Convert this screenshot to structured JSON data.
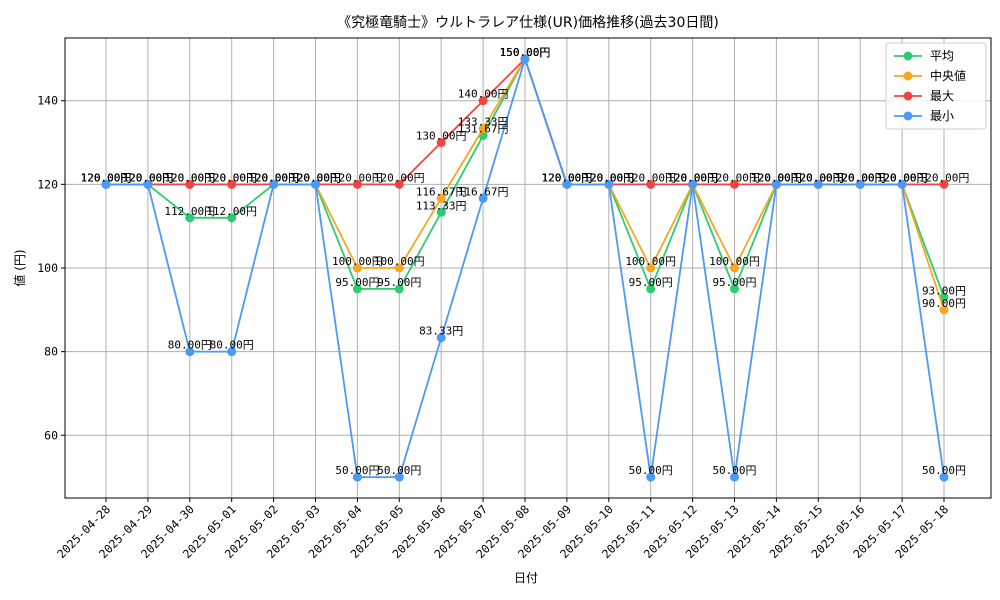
{
  "chart_data": {
    "type": "line",
    "title": "《究極竜騎士》ウルトラレア仕様(UR)価格推移(過去30日間)",
    "xlabel": "日付",
    "ylabel": "値 (円)",
    "ylim": [
      45,
      155
    ],
    "yticks": [
      60,
      80,
      100,
      120,
      140
    ],
    "grid": true,
    "legend_position": "top-right",
    "label_suffix": "円",
    "categories": [
      "2025-04-28",
      "2025-04-29",
      "2025-04-30",
      "2025-05-01",
      "2025-05-02",
      "2025-05-03",
      "2025-05-04",
      "2025-05-05",
      "2025-05-06",
      "2025-05-07",
      "2025-05-08",
      "2025-05-09",
      "2025-05-10",
      "2025-05-11",
      "2025-05-12",
      "2025-05-13",
      "2025-05-14",
      "2025-05-15",
      "2025-05-16",
      "2025-05-17",
      "2025-05-18"
    ],
    "series": [
      {
        "name": "平均",
        "color": "#2ecc71",
        "values": [
          120,
          120,
          112,
          112,
          120,
          120,
          95,
          95,
          113.33,
          131.67,
          150,
          120,
          120,
          95,
          120,
          95,
          120,
          120,
          120,
          120,
          93
        ]
      },
      {
        "name": "中央値",
        "color": "#f5a623",
        "values": [
          120,
          120,
          120,
          120,
          120,
          120,
          100,
          100,
          116.67,
          133.33,
          150,
          120,
          120,
          100,
          120,
          100,
          120,
          120,
          120,
          120,
          90
        ]
      },
      {
        "name": "最大",
        "color": "#ef4444",
        "values": [
          120,
          120,
          120,
          120,
          120,
          120,
          120,
          120,
          130,
          140,
          150,
          120,
          120,
          120,
          120,
          120,
          120,
          120,
          120,
          120,
          120
        ]
      },
      {
        "name": "最小",
        "color": "#4a9af5",
        "values": [
          120,
          120,
          80,
          80,
          120,
          120,
          50,
          50,
          83.33,
          116.67,
          150,
          120,
          120,
          50,
          120,
          50,
          120,
          120,
          120,
          120,
          50
        ]
      }
    ]
  }
}
